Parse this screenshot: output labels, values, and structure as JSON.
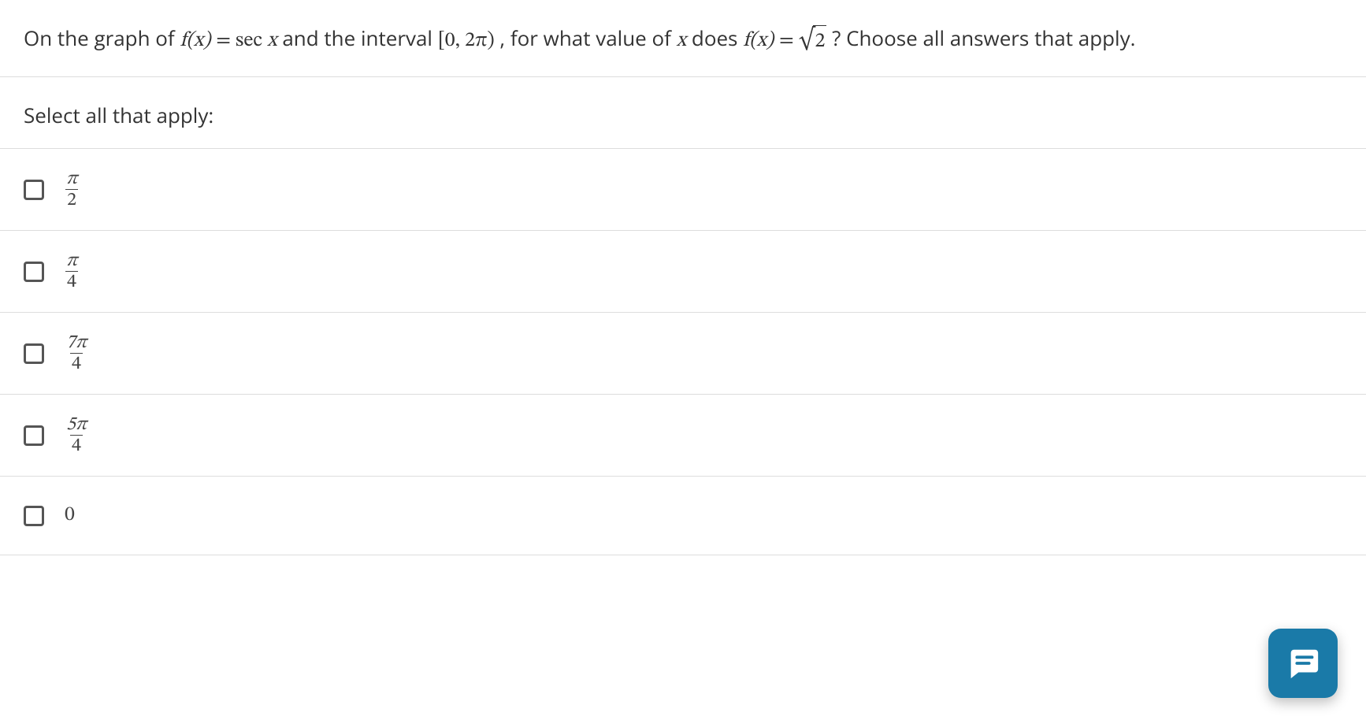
{
  "question": {
    "pre": "On the graph of ",
    "fx": "f(x)",
    "eq1": " = sec ",
    "var_x": "x",
    "mid1": " and the interval ",
    "interval": "[0, 2π)",
    "mid2": ", for what value of ",
    "var_x2": "x",
    "mid3": " does ",
    "fx2": "f(x)",
    "eq2": " = ",
    "sqrt_arg": "2",
    "tail": "? Choose all answers that apply."
  },
  "prompt": "Select all that apply:",
  "options": [
    {
      "type": "frac",
      "num": "π",
      "den": "2"
    },
    {
      "type": "frac",
      "num": "π",
      "den": "4"
    },
    {
      "type": "frac",
      "num": "7π",
      "den": "4"
    },
    {
      "type": "frac",
      "num": "5π",
      "den": "4"
    },
    {
      "type": "plain",
      "text": "0"
    }
  ],
  "colors": {
    "text": "#333333",
    "border": "#dddddd",
    "checkbox_border": "#555555",
    "fab_bg": "#1a7aa8",
    "fab_icon": "#ffffff"
  },
  "icons": {
    "chat": "chat-icon"
  }
}
